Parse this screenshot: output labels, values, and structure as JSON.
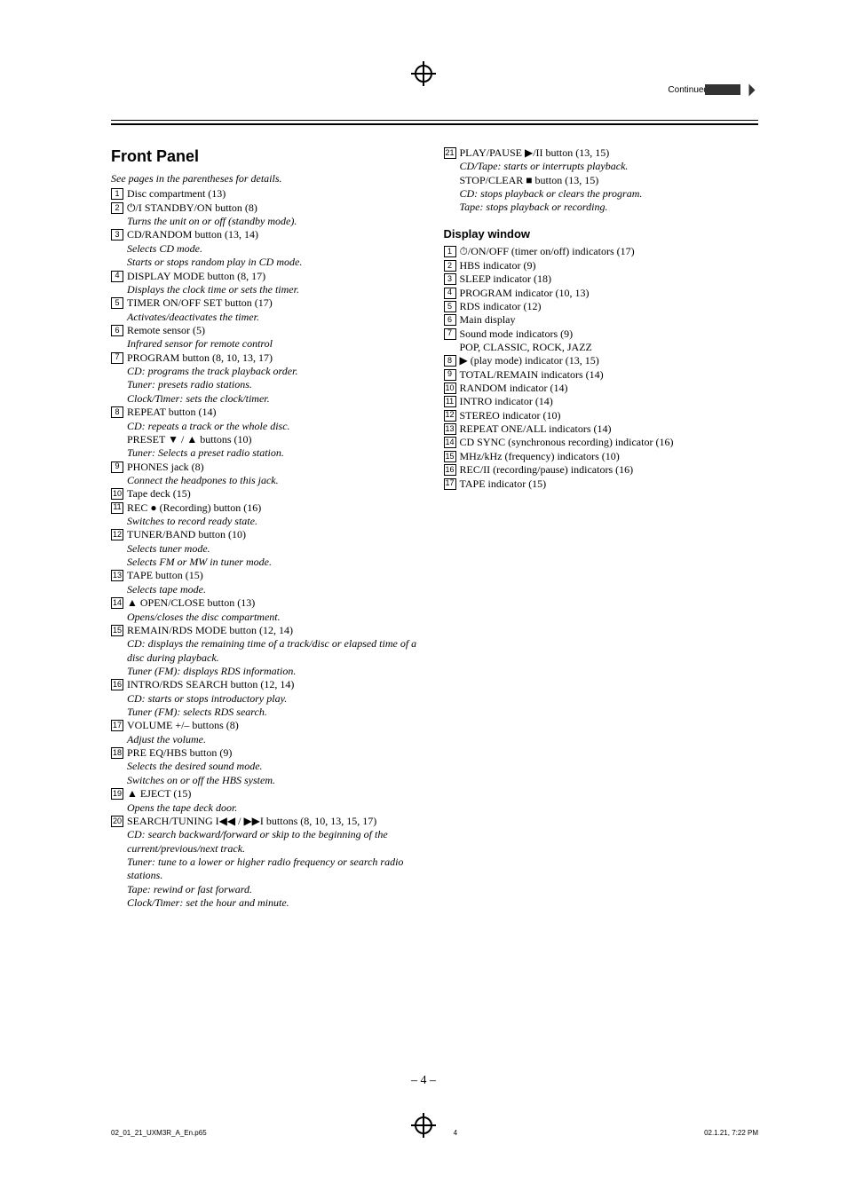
{
  "header": {
    "continued": "Continued"
  },
  "page_number": "– 4 –",
  "footer": {
    "left": "02_01_21_UXM3R_A_En.p65",
    "mid": "4",
    "right": "02.1.21, 7:22 PM"
  },
  "front_panel": {
    "title": "Front Panel",
    "lead": "See pages in the parentheses for details.",
    "items": [
      {
        "n": "1",
        "lines": [
          {
            "t": "Disc compartment (13)"
          }
        ]
      },
      {
        "n": "2",
        "lines": [
          {
            "t": "⏻/I STANDBY/ON button (8)"
          },
          {
            "t": "Turns the unit on or off (standby mode).",
            "i": true
          }
        ]
      },
      {
        "n": "3",
        "lines": [
          {
            "t": "CD/RANDOM button (13, 14)"
          },
          {
            "t": "Selects CD mode.",
            "i": true
          },
          {
            "t": "Starts or stops random play in CD mode.",
            "i": true
          }
        ]
      },
      {
        "n": "4",
        "lines": [
          {
            "t": "DISPLAY MODE button (8, 17)"
          },
          {
            "t": "Displays the clock time or sets the timer.",
            "i": true
          }
        ]
      },
      {
        "n": "5",
        "lines": [
          {
            "t": "TIMER ON/OFF SET button (17)"
          },
          {
            "t": "Activates/deactivates the timer.",
            "i": true
          }
        ]
      },
      {
        "n": "6",
        "lines": [
          {
            "t": "Remote sensor (5)"
          },
          {
            "t": "Infrared sensor for remote control",
            "i": true
          }
        ]
      },
      {
        "n": "7",
        "lines": [
          {
            "t": "PROGRAM button (8, 10, 13, 17)"
          },
          {
            "t": "CD: programs the track playback order.",
            "i": true
          },
          {
            "t": "Tuner: presets radio stations.",
            "i": true
          },
          {
            "t": "Clock/Timer: sets the clock/timer.",
            "i": true
          }
        ]
      },
      {
        "n": "8",
        "lines": [
          {
            "t": "REPEAT button (14)"
          },
          {
            "t": "CD: repeats a track or the whole disc.",
            "i": true
          },
          {
            "t": "PRESET ▼ / ▲ buttons (10)"
          },
          {
            "t": "Tuner: Selects a preset radio station.",
            "i": true
          }
        ]
      },
      {
        "n": "9",
        "lines": [
          {
            "t": "PHONES jack (8)"
          },
          {
            "t": "Connect the headpones to this jack.",
            "i": true
          }
        ]
      },
      {
        "n": "10",
        "lines": [
          {
            "t": "Tape deck (15)"
          }
        ]
      },
      {
        "n": "11",
        "lines": [
          {
            "t": "REC ● (Recording) button (16)"
          },
          {
            "t": "Switches to record ready state.",
            "i": true
          }
        ]
      },
      {
        "n": "12",
        "lines": [
          {
            "t": "TUNER/BAND button (10)"
          },
          {
            "t": "Selects tuner mode.",
            "i": true
          },
          {
            "t": "Selects FM or MW in tuner mode.",
            "i": true
          }
        ]
      },
      {
        "n": "13",
        "lines": [
          {
            "t": "TAPE button (15)"
          },
          {
            "t": "Selects tape mode.",
            "i": true
          }
        ]
      },
      {
        "n": "14",
        "lines": [
          {
            "t": "▲ OPEN/CLOSE button (13)"
          },
          {
            "t": "Opens/closes the disc compartment.",
            "i": true
          }
        ]
      },
      {
        "n": "15",
        "lines": [
          {
            "t": "REMAIN/RDS MODE button (12, 14)"
          },
          {
            "t": "CD: displays the remaining time of a track/disc or elapsed time of a disc during playback.",
            "i": true
          },
          {
            "t": "Tuner (FM): displays RDS information.",
            "i": true
          }
        ]
      },
      {
        "n": "16",
        "lines": [
          {
            "t": "INTRO/RDS SEARCH button (12, 14)"
          },
          {
            "t": "CD: starts or stops introductory play.",
            "i": true
          },
          {
            "t": "Tuner (FM): selects RDS search.",
            "i": true
          }
        ]
      },
      {
        "n": "17",
        "lines": [
          {
            "t": "VOLUME +/– buttons (8)"
          },
          {
            "t": "Adjust the volume.",
            "i": true
          }
        ]
      },
      {
        "n": "18",
        "lines": [
          {
            "t": "PRE EQ/HBS button (9)"
          },
          {
            "t": "Selects the desired sound mode.",
            "i": true
          },
          {
            "t": "Switches on or off the HBS system.",
            "i": true
          }
        ]
      },
      {
        "n": "19",
        "lines": [
          {
            "t": "▲ EJECT (15)"
          },
          {
            "t": "Opens the tape deck door.",
            "i": true
          }
        ]
      },
      {
        "n": "20",
        "lines": [
          {
            "t": "SEARCH/TUNING I◀◀ / ▶▶I buttons (8, 10, 13, 15, 17)"
          },
          {
            "t": "CD: search backward/forward or skip to the beginning of the current/previous/next track.",
            "i": true
          },
          {
            "t": "Tuner: tune to a lower or higher radio frequency or search radio stations.",
            "i": true
          },
          {
            "t": "Tape: rewind or fast forward.",
            "i": true
          },
          {
            "t": "Clock/Timer: set the hour and minute.",
            "i": true
          }
        ]
      }
    ]
  },
  "front_panel_right_continue": {
    "items": [
      {
        "n": "21",
        "lines": [
          {
            "t": "PLAY/PAUSE ▶/II button (13, 15)"
          },
          {
            "t": "CD/Tape: starts or interrupts playback.",
            "i": true
          },
          {
            "t": "STOP/CLEAR ■ button (13, 15)"
          },
          {
            "t": "CD: stops playback or clears the program.",
            "i": true
          },
          {
            "t": "Tape: stops playback or recording.",
            "i": true
          }
        ]
      }
    ]
  },
  "display_window": {
    "title": "Display window",
    "items": [
      {
        "n": "1",
        "lines": [
          {
            "t": "⏱/ON/OFF (timer on/off) indicators (17)"
          }
        ]
      },
      {
        "n": "2",
        "lines": [
          {
            "t": "HBS indicator (9)"
          }
        ]
      },
      {
        "n": "3",
        "lines": [
          {
            "t": "SLEEP indicator (18)"
          }
        ]
      },
      {
        "n": "4",
        "lines": [
          {
            "t": "PROGRAM indicator (10, 13)"
          }
        ]
      },
      {
        "n": "5",
        "lines": [
          {
            "t": "RDS indicator (12)"
          }
        ]
      },
      {
        "n": "6",
        "lines": [
          {
            "t": "Main display"
          }
        ]
      },
      {
        "n": "7",
        "lines": [
          {
            "t": "Sound mode indicators (9)"
          },
          {
            "t": "POP, CLASSIC, ROCK, JAZZ"
          }
        ]
      },
      {
        "n": "8",
        "lines": [
          {
            "t": "▶ (play mode) indicator (13, 15)"
          }
        ]
      },
      {
        "n": "9",
        "lines": [
          {
            "t": "TOTAL/REMAIN indicators (14)"
          }
        ]
      },
      {
        "n": "10",
        "lines": [
          {
            "t": "RANDOM indicator (14)"
          }
        ]
      },
      {
        "n": "11",
        "lines": [
          {
            "t": "INTRO indicator (14)"
          }
        ]
      },
      {
        "n": "12",
        "lines": [
          {
            "t": "STEREO indicator (10)"
          }
        ]
      },
      {
        "n": "13",
        "lines": [
          {
            "t": "REPEAT ONE/ALL indicators (14)"
          }
        ]
      },
      {
        "n": "14",
        "lines": [
          {
            "t": "CD SYNC (synchronous recording) indicator (16)"
          }
        ]
      },
      {
        "n": "15",
        "lines": [
          {
            "t": "MHz/kHz (frequency) indicators (10)"
          }
        ]
      },
      {
        "n": "16",
        "lines": [
          {
            "t": "REC/II (recording/pause) indicators (16)"
          }
        ]
      },
      {
        "n": "17",
        "lines": [
          {
            "t": "TAPE indicator (15)"
          }
        ]
      }
    ]
  }
}
